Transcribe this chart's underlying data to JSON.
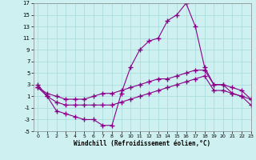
{
  "xlabel": "Windchill (Refroidissement éolien,°C)",
  "bg_color": "#cff0f0",
  "grid_color": "#aadddd",
  "line_color": "#880088",
  "xlim": [
    -0.5,
    23
  ],
  "ylim": [
    -5,
    17
  ],
  "xticks": [
    0,
    1,
    2,
    3,
    4,
    5,
    6,
    7,
    8,
    9,
    10,
    11,
    12,
    13,
    14,
    15,
    16,
    17,
    18,
    19,
    20,
    21,
    22,
    23
  ],
  "yticks": [
    -5,
    -3,
    -1,
    1,
    3,
    5,
    7,
    9,
    11,
    13,
    15,
    17
  ],
  "line1_x": [
    0,
    1,
    2,
    3,
    4,
    5,
    6,
    7,
    8,
    9,
    10,
    11,
    12,
    13,
    14,
    15,
    16,
    17,
    18,
    19,
    20,
    21,
    22,
    23
  ],
  "line1_y": [
    3,
    1,
    -1.5,
    -2,
    -2.5,
    -3,
    -3,
    -4,
    -4,
    1.5,
    6,
    9,
    10.5,
    11,
    14,
    15,
    17,
    13,
    6,
    3,
    3,
    1.5,
    1,
    0.5
  ],
  "line2_x": [
    0,
    1,
    2,
    3,
    4,
    5,
    6,
    7,
    8,
    9,
    10,
    11,
    12,
    13,
    14,
    15,
    16,
    17,
    18,
    19,
    20,
    21,
    22,
    23
  ],
  "line2_y": [
    2.5,
    1.5,
    1.0,
    0.5,
    0.5,
    0.5,
    1.0,
    1.5,
    1.5,
    2.0,
    2.5,
    3.0,
    3.5,
    4.0,
    4.0,
    4.5,
    5.0,
    5.5,
    5.5,
    3.0,
    3.0,
    2.5,
    2.0,
    0.5
  ],
  "line3_x": [
    0,
    1,
    2,
    3,
    4,
    5,
    6,
    7,
    8,
    9,
    10,
    11,
    12,
    13,
    14,
    15,
    16,
    17,
    18,
    19,
    20,
    21,
    22,
    23
  ],
  "line3_y": [
    2.5,
    1.0,
    0.0,
    -0.5,
    -0.5,
    -0.5,
    -0.5,
    -0.5,
    -0.5,
    0.0,
    0.5,
    1.0,
    1.5,
    2.0,
    2.5,
    3.0,
    3.5,
    4.0,
    4.5,
    2.0,
    2.0,
    1.5,
    1.0,
    -0.5
  ]
}
